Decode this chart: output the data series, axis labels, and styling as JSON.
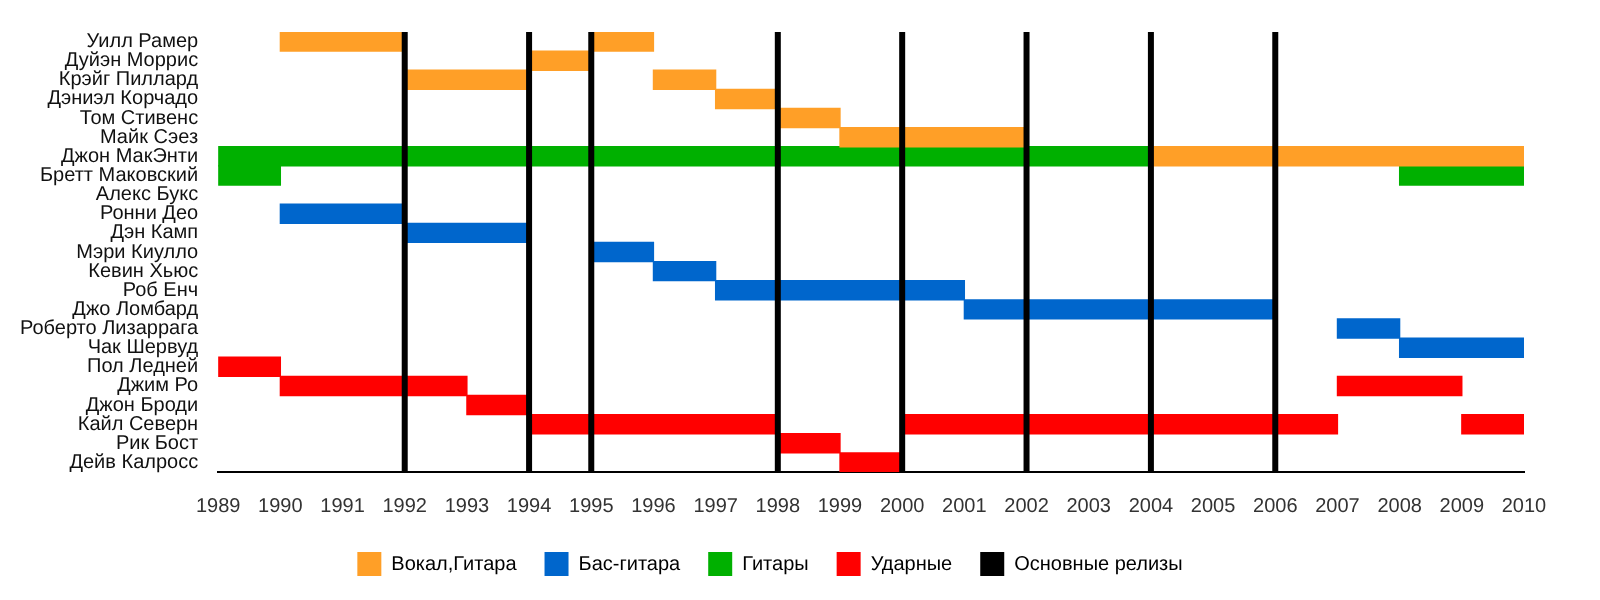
{
  "chart_data": {
    "type": "bar",
    "orientation": "horizontal",
    "categories": [
      "Уилл Рамер",
      "Дуйэн Моррис",
      "Крэйг Пиллард",
      "Дэниэл Корчадо",
      "Том Стивенс",
      "Майк Сэез",
      "Джон МакЭнти",
      "Бретт Маковский",
      "Алекс Букс",
      "Ронни Део",
      "Дэн Камп",
      "Мэри Киулло",
      "Кевин Хьюс",
      "Роб Енч",
      "Джо Ломбард",
      "Роберто Лизаррага",
      "Чак Шервуд",
      "Пол Ледней",
      "Джим Ро",
      "Джон Броди",
      "Кайл Северн",
      "Рик Бост",
      "Дейв Калросс"
    ],
    "series": [
      {
        "name": "Вокал,Гитара",
        "color": "#ff9f27",
        "base": [
          1990,
          1994,
          1992,
          1997,
          1998,
          1999,
          2004,
          null,
          null,
          null,
          null,
          null,
          null,
          null,
          null,
          null,
          null,
          null,
          null,
          null,
          null,
          null,
          null
        ],
        "values": [
          2,
          1,
          2,
          1,
          1,
          3,
          6,
          null,
          null,
          null,
          null,
          null,
          null,
          null,
          null,
          null,
          null,
          null,
          null,
          null,
          null,
          null,
          null
        ]
      },
      {
        "color": "#ff9f27",
        "base": [
          1995,
          null,
          1996,
          null,
          null,
          null,
          null,
          null,
          null,
          null,
          null,
          null,
          null,
          null,
          null,
          null,
          null,
          null,
          null,
          null,
          null,
          null,
          null
        ],
        "values": [
          1,
          null,
          1,
          null,
          null,
          null,
          null,
          null,
          null,
          null,
          null,
          null,
          null,
          null,
          null,
          null,
          null,
          null,
          null,
          null,
          null,
          null,
          null
        ]
      },
      {
        "name": "Бас-гитара",
        "color": "#0066cc",
        "base": [
          null,
          null,
          null,
          null,
          null,
          null,
          null,
          null,
          null,
          1990,
          1992,
          1995,
          1996,
          1997,
          2001,
          2007,
          2008,
          null,
          null,
          null,
          null,
          null,
          null
        ],
        "values": [
          null,
          null,
          null,
          null,
          null,
          null,
          null,
          null,
          null,
          2,
          2,
          1,
          1,
          4,
          5,
          1,
          2,
          null,
          null,
          null,
          null,
          null,
          null
        ]
      },
      {
        "name": "Гитары",
        "color": "#00b000",
        "base": [
          null,
          null,
          null,
          null,
          null,
          null,
          1989,
          1989,
          null,
          null,
          null,
          null,
          null,
          null,
          null,
          null,
          null,
          null,
          null,
          null,
          null,
          null,
          null
        ],
        "values": [
          null,
          null,
          null,
          null,
          null,
          null,
          15,
          1,
          null,
          null,
          null,
          null,
          null,
          null,
          null,
          null,
          null,
          null,
          null,
          null,
          null,
          null,
          null
        ]
      },
      {
        "color": "#00b000",
        "base": [
          null,
          null,
          null,
          null,
          null,
          null,
          null,
          2008,
          null,
          null,
          null,
          null,
          null,
          null,
          null,
          null,
          null,
          null,
          null,
          null,
          null,
          null,
          null
        ],
        "values": [
          null,
          null,
          null,
          null,
          null,
          null,
          null,
          2,
          null,
          null,
          null,
          null,
          null,
          null,
          null,
          null,
          null,
          null,
          null,
          null,
          null,
          null,
          null
        ]
      },
      {
        "name": "Ударные",
        "color": "#ff0000",
        "base": [
          null,
          null,
          null,
          null,
          null,
          null,
          null,
          null,
          null,
          null,
          null,
          null,
          null,
          null,
          null,
          null,
          null,
          1989,
          1990,
          1993,
          1994,
          1998,
          1999
        ],
        "values": [
          null,
          null,
          null,
          null,
          null,
          null,
          null,
          null,
          null,
          null,
          null,
          null,
          null,
          null,
          null,
          null,
          null,
          1,
          3,
          1,
          4,
          1,
          1
        ]
      },
      {
        "color": "#ff0000",
        "base": [
          null,
          null,
          null,
          null,
          null,
          null,
          null,
          null,
          null,
          null,
          null,
          null,
          null,
          null,
          null,
          null,
          null,
          null,
          2007,
          null,
          2000,
          null,
          null
        ],
        "values": [
          null,
          null,
          null,
          null,
          null,
          null,
          null,
          null,
          null,
          null,
          null,
          null,
          null,
          null,
          null,
          null,
          null,
          null,
          2,
          null,
          7,
          null,
          null
        ]
      },
      {
        "color": "#ff0000",
        "base": [
          null,
          null,
          null,
          null,
          null,
          null,
          null,
          null,
          null,
          null,
          null,
          null,
          null,
          null,
          null,
          null,
          null,
          null,
          null,
          null,
          2009,
          null,
          null
        ],
        "values": [
          null,
          null,
          null,
          null,
          null,
          null,
          null,
          null,
          null,
          null,
          null,
          null,
          null,
          null,
          null,
          null,
          null,
          null,
          null,
          null,
          1,
          null,
          null
        ]
      }
    ],
    "ref_lines": [
      {
        "axis": "x",
        "value": 1992,
        "label": "Основные релизы",
        "color": "#000000"
      },
      {
        "axis": "x",
        "value": 1994,
        "color": "#000000"
      },
      {
        "axis": "x",
        "value": 1995,
        "color": "#000000"
      },
      {
        "axis": "x",
        "value": 1998,
        "color": "#000000"
      },
      {
        "axis": "x",
        "value": 2000,
        "color": "#000000"
      },
      {
        "axis": "x",
        "value": 2002,
        "color": "#000000"
      },
      {
        "axis": "x",
        "value": 2004,
        "color": "#000000"
      },
      {
        "axis": "x",
        "value": 2006,
        "color": "#000000"
      }
    ],
    "xlim": [
      1989,
      2010
    ],
    "xticks": [
      1989,
      1990,
      1991,
      1992,
      1993,
      1994,
      1995,
      1996,
      1997,
      1998,
      1999,
      2000,
      2001,
      2002,
      2003,
      2004,
      2005,
      2006,
      2007,
      2008,
      2009,
      2010
    ],
    "grid": false,
    "legend": "bottom"
  }
}
